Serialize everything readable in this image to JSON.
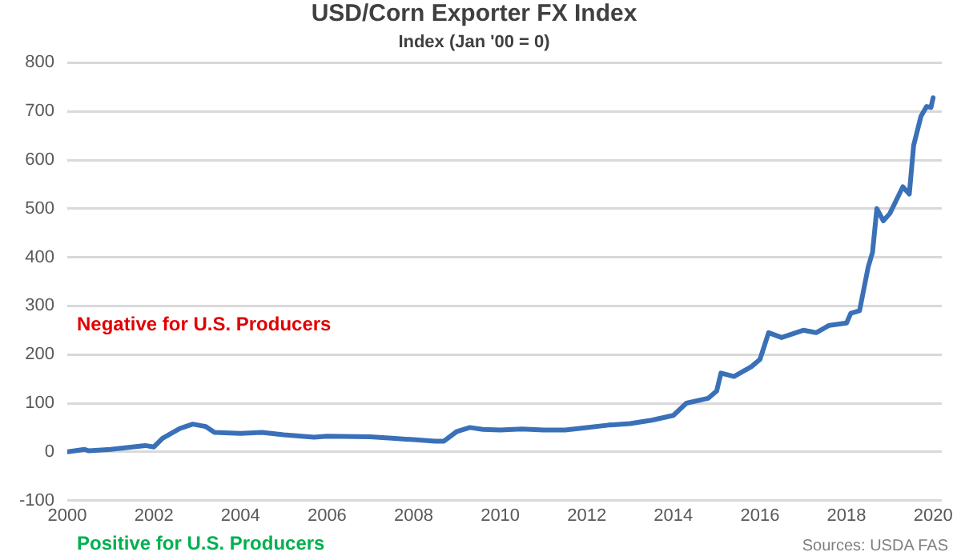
{
  "chart_data": {
    "type": "line",
    "title": "USD/Corn Exporter FX Index",
    "subtitle": "Index (Jan '00 = 0)",
    "x": [
      2000,
      2000.4,
      2000.5,
      2001,
      2001.5,
      2001.8,
      2002,
      2002.2,
      2002.6,
      2002.9,
      2003.2,
      2003.4,
      2004,
      2004.5,
      2005,
      2005.7,
      2006,
      2007,
      2007.5,
      2008,
      2008.5,
      2008.7,
      2009,
      2009.3,
      2009.6,
      2010,
      2010.5,
      2011,
      2011.5,
      2012,
      2012.5,
      2013,
      2013.5,
      2014,
      2014.3,
      2014.8,
      2015,
      2015.1,
      2015.4,
      2015.8,
      2016,
      2016.2,
      2016.5,
      2017,
      2017.3,
      2017.6,
      2018,
      2018.1,
      2018.3,
      2018.5,
      2018.6,
      2018.7,
      2018.85,
      2019,
      2019.3,
      2019.45,
      2019.55,
      2019.72,
      2019.85,
      2019.95,
      2020
    ],
    "series": [
      {
        "color": "#3a70b8",
        "values": [
          0,
          5,
          2,
          5,
          10,
          13,
          10,
          28,
          48,
          57,
          52,
          40,
          38,
          40,
          35,
          30,
          32,
          31,
          28,
          25,
          22,
          22,
          42,
          50,
          46,
          45,
          47,
          45,
          45,
          50,
          55,
          58,
          65,
          75,
          100,
          110,
          125,
          162,
          155,
          175,
          190,
          245,
          235,
          250,
          245,
          260,
          265,
          285,
          290,
          380,
          410,
          500,
          475,
          490,
          545,
          530,
          630,
          690,
          710,
          708,
          728
        ]
      }
    ],
    "xlim": [
      2000,
      2020.2
    ],
    "xticks": [
      2000,
      2002,
      2004,
      2006,
      2008,
      2010,
      2012,
      2014,
      2016,
      2018,
      2020
    ],
    "ylim": [
      -100,
      800
    ],
    "yticks": [
      -100,
      0,
      100,
      200,
      300,
      400,
      500,
      600,
      700,
      800
    ],
    "grid": "y",
    "legend": false,
    "marker": "none",
    "line_style": "solid",
    "annotations": [
      "Negative for U.S. Producers",
      "Positive for U.S. Producers",
      "Sources: USDA FAS"
    ]
  }
}
